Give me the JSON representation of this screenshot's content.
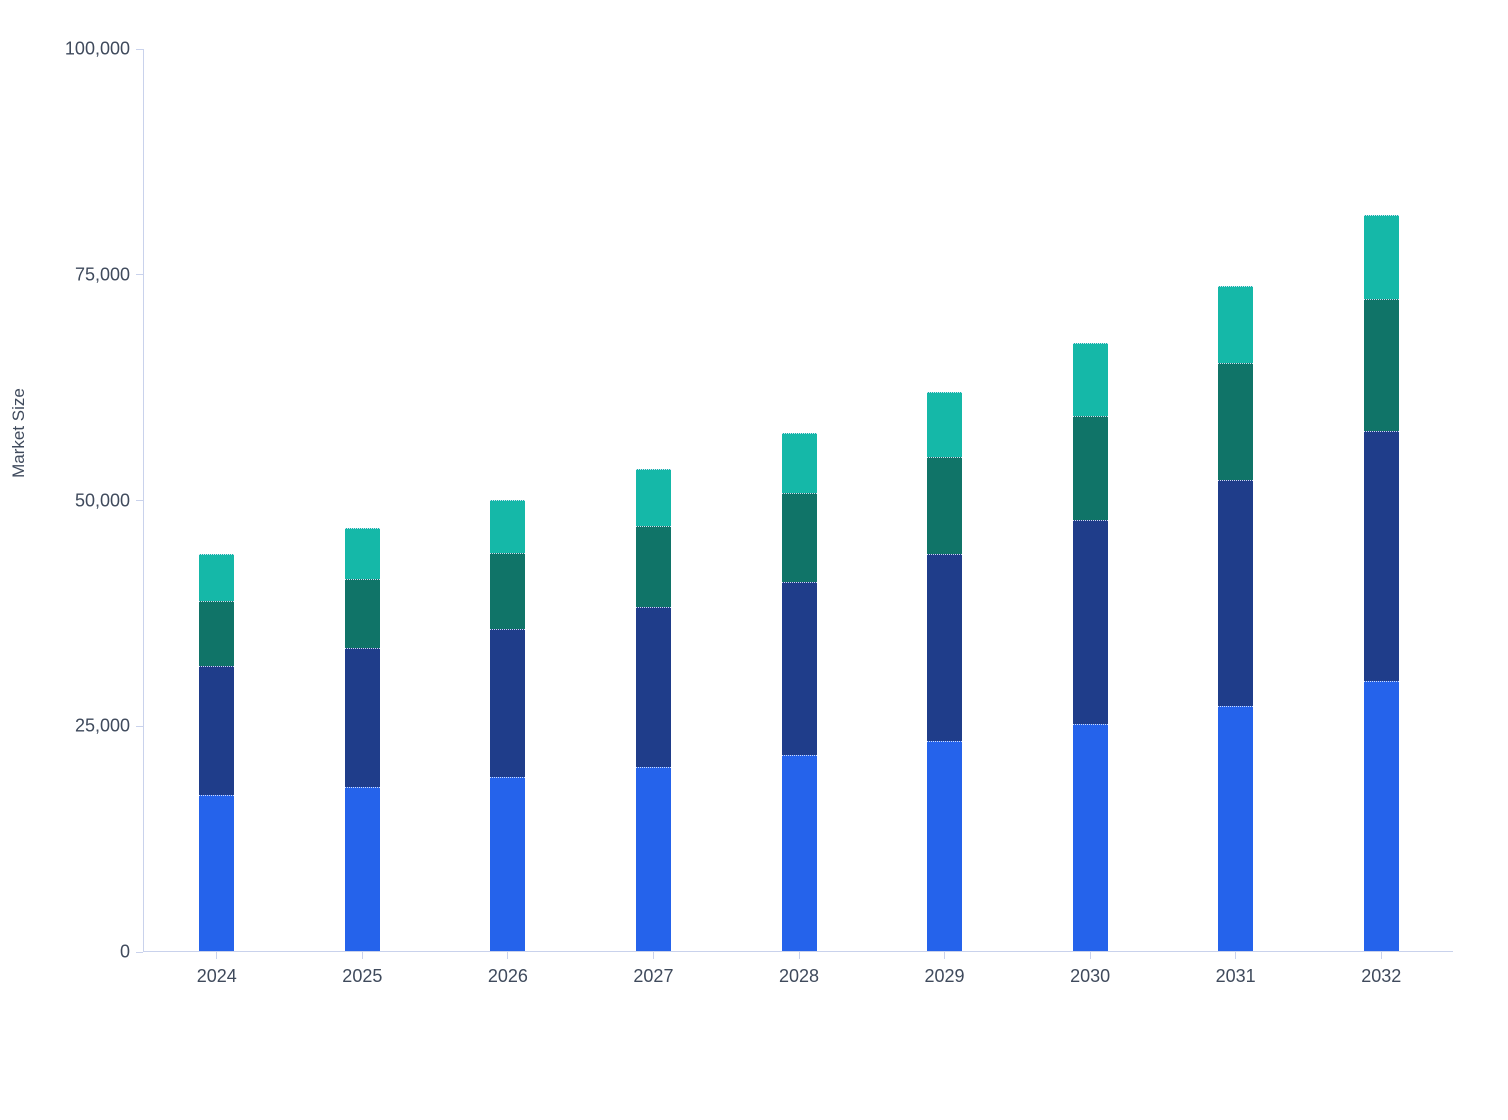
{
  "chart_data": {
    "type": "bar",
    "stacked": true,
    "title": "",
    "xlabel": "",
    "ylabel": "Market Size",
    "categories": [
      "2024",
      "2025",
      "2026",
      "2027",
      "2028",
      "2029",
      "2030",
      "2031",
      "2032"
    ],
    "series": [
      {
        "key": "bottom-blue",
        "name": "Bottom segment (bright blue)",
        "color": "#2563eb",
        "values": [
          17300,
          18200,
          19300,
          20400,
          21700,
          23300,
          25100,
          27100,
          29900
        ]
      },
      {
        "key": "navy",
        "name": "Second segment (navy blue)",
        "color": "#1f3d8a",
        "values": [
          14300,
          15400,
          16400,
          17700,
          19200,
          20700,
          22600,
          25100,
          27700
        ]
      },
      {
        "key": "dark-teal",
        "name": "Third segment (dark teal)",
        "color": "#107468",
        "values": [
          7200,
          7600,
          8400,
          9000,
          9800,
          10700,
          11600,
          12900,
          14600
        ]
      },
      {
        "key": "light-teal",
        "name": "Top segment (light teal)",
        "color": "#15b8a8",
        "values": [
          5200,
          5700,
          5900,
          6300,
          6700,
          7200,
          8000,
          8600,
          9300
        ]
      }
    ],
    "totals": [
      44000,
      46900,
      50000,
      53400,
      57400,
      61900,
      67300,
      73700,
      81500
    ],
    "ylim": [
      0,
      100000
    ],
    "yticks": [
      0,
      25000,
      50000,
      75000,
      100000
    ],
    "ytick_labels": [
      "0",
      "25,000",
      "50,000",
      "75,000",
      "100,000"
    ],
    "grid": false,
    "legend": false,
    "colors": {
      "axis_line": "#c9d2ec",
      "tick_text": "#3f4a5c"
    }
  }
}
